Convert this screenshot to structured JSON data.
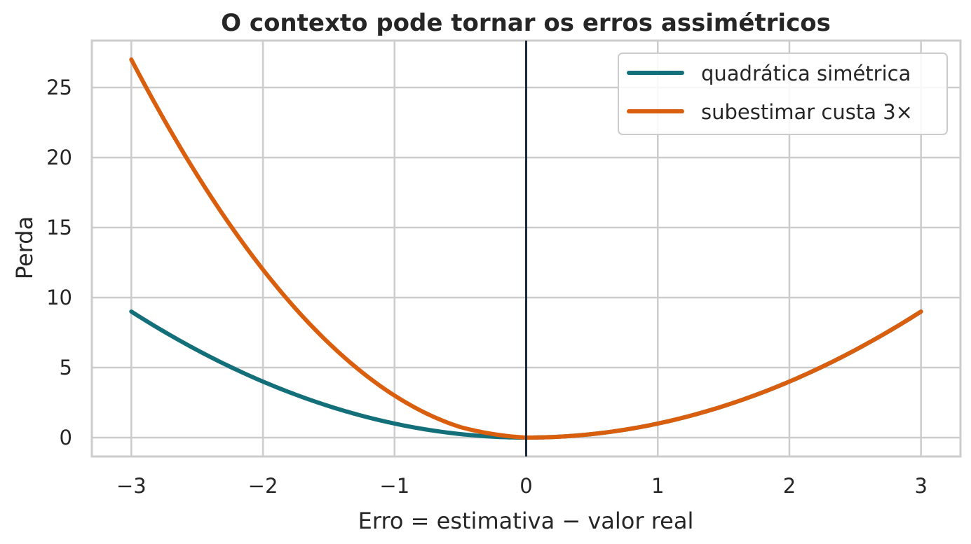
{
  "chart_data": {
    "type": "line",
    "title": "O contexto pode tornar os erros assimétricos",
    "xlabel": "Erro = estimativa − valor real",
    "ylabel": "Perda",
    "xlim": [
      -3.3,
      3.3
    ],
    "ylim": [
      -1.35,
      28.35
    ],
    "xticks": [
      -3,
      -2,
      -1,
      0,
      1,
      2,
      3
    ],
    "xtick_labels": [
      "−3",
      "−2",
      "−1",
      "0",
      "1",
      "2",
      "3"
    ],
    "yticks": [
      0,
      5,
      10,
      15,
      20,
      25
    ],
    "ytick_labels": [
      "0",
      "5",
      "10",
      "15",
      "20",
      "25"
    ],
    "grid": true,
    "legend_position": "top-right",
    "vline": {
      "x": 0,
      "color": "#1b2a3a"
    },
    "x": [
      -3,
      -2.5,
      -2,
      -1.5,
      -1,
      -0.5,
      0,
      0.5,
      1,
      1.5,
      2,
      2.5,
      3
    ],
    "series": [
      {
        "name": "quadrática simétrica",
        "color": "#136f7a",
        "values": [
          9,
          6.25,
          4,
          2.25,
          1,
          0.25,
          0,
          0.25,
          1,
          2.25,
          4,
          6.25,
          9
        ]
      },
      {
        "name": "subestimar custa 3×",
        "color": "#d95f0e",
        "values": [
          27,
          18.75,
          12,
          6.75,
          3,
          0.75,
          0,
          0.25,
          1,
          2.25,
          4,
          6.25,
          9
        ]
      }
    ]
  }
}
